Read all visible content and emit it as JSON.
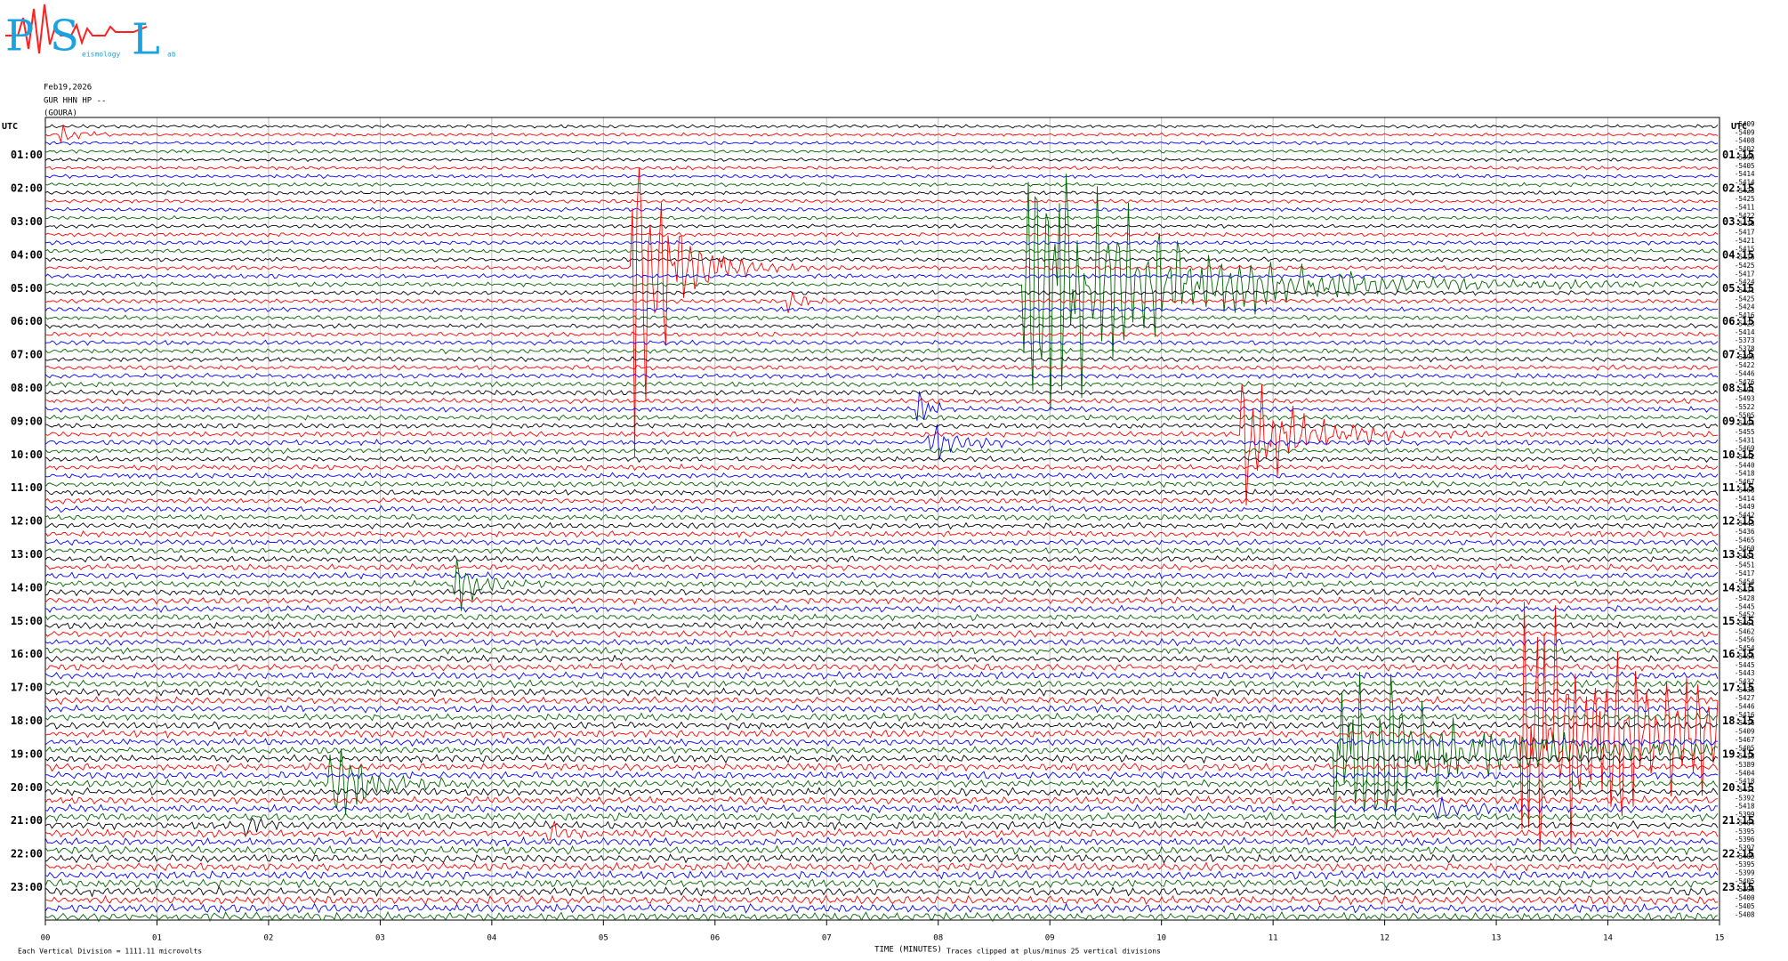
{
  "logo": {
    "letters": [
      "P",
      "S",
      "L"
    ],
    "small": [
      "eismology",
      "ab"
    ]
  },
  "header": {
    "date": "Feb19,2026",
    "station": "GUR HHN HP --",
    "site": "(GOURA)"
  },
  "left_labels": {
    "corner": "UTC",
    "hours": [
      "01:00",
      "02:00",
      "03:00",
      "04:00",
      "05:00",
      "06:00",
      "07:00",
      "08:00",
      "09:00",
      "10:00",
      "11:00",
      "12:00",
      "13:00",
      "14:00",
      "15:00",
      "16:00",
      "17:00",
      "18:00",
      "19:00",
      "20:00",
      "21:00",
      "22:00",
      "23:00"
    ]
  },
  "right_labels": {
    "corner": "UTC",
    "hours": [
      "01:15",
      "02:15",
      "03:15",
      "04:15",
      "05:15",
      "06:15",
      "07:15",
      "08:15",
      "09:15",
      "10:15",
      "11:15",
      "12:15",
      "13:15",
      "14:15",
      "15:15",
      "16:15",
      "17:15",
      "18:15",
      "19:15",
      "20:15",
      "21:15",
      "22:15",
      "23:15"
    ]
  },
  "offsets": [
    "-5409",
    "-5409",
    "-5408",
    "-5402",
    "-5396",
    "-5405",
    "-5414",
    "-5414",
    "-5423",
    "-5425",
    "-5411",
    "-5422",
    "-5410",
    "-5417",
    "-5421",
    "-5415",
    "-5416",
    "-5425",
    "-5417",
    "-5424",
    "-5421",
    "-5425",
    "-5424",
    "-5416",
    "-5423",
    "-5414",
    "-5373",
    "-5378",
    "-5396",
    "-5422",
    "-5446",
    "-5476",
    "-5491",
    "-5493",
    "-5522",
    "-5505",
    "-5494",
    "-5455",
    "-5431",
    "-5469",
    "-5442",
    "-5440",
    "-5418",
    "-5467",
    "-5468",
    "-5414",
    "-5449",
    "-5442",
    "-5443",
    "-5436",
    "-5465",
    "-5460",
    "-5451",
    "-5451",
    "-5417",
    "-5454",
    "-5414",
    "-5428",
    "-5445",
    "-5452",
    "-5461",
    "-5462",
    "-5456",
    "-5454",
    "-5456",
    "-5445",
    "-5443",
    "-5432",
    "-5435",
    "-5427",
    "-5446",
    "-5416",
    "-5416",
    "-5409",
    "-5467",
    "-5405",
    "-5418",
    "-5389",
    "-5404",
    "-5418",
    "-5411",
    "-5392",
    "-5418",
    "-5399",
    "-5404",
    "-5395",
    "-5396",
    "-5397",
    "-5405",
    "-5395",
    "-5399",
    "-5405",
    "-5396",
    "-5400",
    "-5405",
    "-5408"
  ],
  "x_axis": {
    "ticks": [
      "00",
      "01",
      "02",
      "03",
      "04",
      "05",
      "06",
      "07",
      "08",
      "09",
      "10",
      "11",
      "12",
      "13",
      "14",
      "15"
    ],
    "label": "TIME (MINUTES)"
  },
  "footer": {
    "scale": "Each Vertical Division = 1111.11 microvolts",
    "clip": "Traces clipped at plus/minus 25 vertical divisions"
  },
  "trace_colors": [
    "#000000",
    "#ff0000",
    "#0000ff",
    "#006400"
  ]
}
